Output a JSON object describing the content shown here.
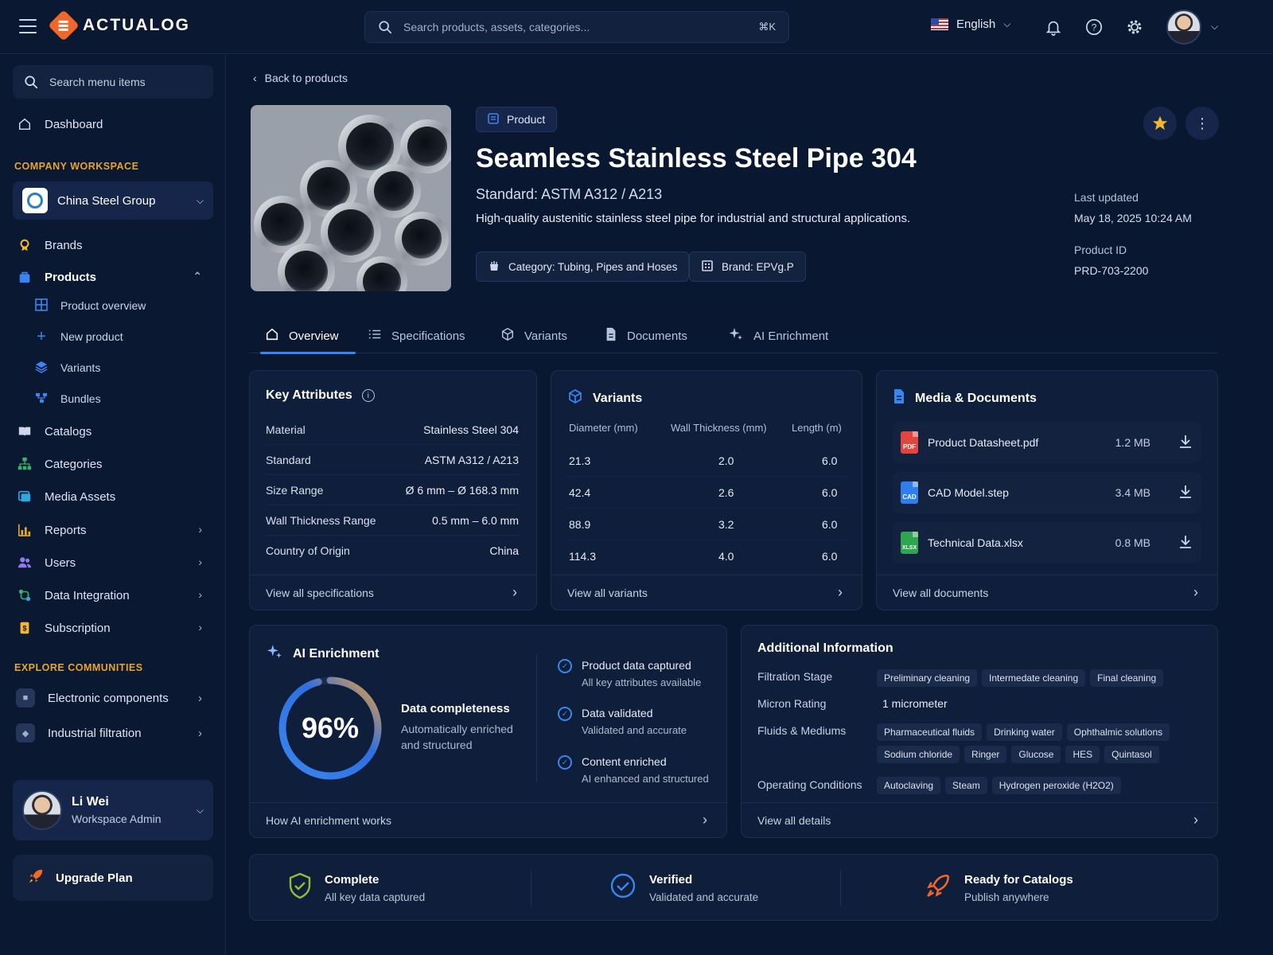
{
  "app": {
    "name": "ACTUALOG"
  },
  "search": {
    "placeholder": "Search products, assets, categories...",
    "shortcut": "⌘K"
  },
  "header": {
    "language": "English"
  },
  "sidebar": {
    "search_placeholder": "Search menu items",
    "dashboard": "Dashboard",
    "workspace_section": "COMPANY WORKSPACE",
    "workspace_name": "China Steel Group",
    "items": {
      "brands": "Brands",
      "products": "Products",
      "product_overview": "Product overview",
      "new_product": "New product",
      "variants": "Variants",
      "bundles": "Bundles",
      "catalogs": "Catalogs",
      "categories": "Categories",
      "media_assets": "Media Assets",
      "reports": "Reports",
      "users": "Users",
      "data_integration": "Data Integration",
      "subscription": "Subscription"
    },
    "communities_section": "EXPLORE COMMUNITIES",
    "communities": [
      "Electronic components",
      "Industrial filtration"
    ],
    "user": {
      "name": "Li Wei",
      "role": "Workspace Admin"
    },
    "upgrade": "Upgrade Plan"
  },
  "product": {
    "back": "Back to products",
    "type": "Product",
    "title": "Seamless Stainless Steel Pipe 304",
    "standard": "Standard: ASTM A312 / A213",
    "description": "High-quality austenitic stainless steel pipe for industrial and structural applications.",
    "category": "Category: Tubing, Pipes and Hoses",
    "brand": "Brand: EPVg.P",
    "last_updated_label": "Last updated",
    "last_updated": "May 18, 2025 10:24 AM",
    "id_label": "Product ID",
    "id": "PRD-703-2200"
  },
  "tabs": [
    "Overview",
    "Specifications",
    "Variants",
    "Documents",
    "AI Enrichment"
  ],
  "key_attributes": {
    "title": "Key Attributes",
    "rows": [
      {
        "k": "Material",
        "v": "Stainless Steel 304"
      },
      {
        "k": "Standard",
        "v": "ASTM A312 / A213"
      },
      {
        "k": "Size Range",
        "v": "Ø 6 mm – Ø 168.3 mm"
      },
      {
        "k": "Wall Thickness Range",
        "v": "0.5 mm – 6.0 mm"
      },
      {
        "k": "Country of Origin",
        "v": "China"
      }
    ],
    "footer": "View all specifications"
  },
  "variants": {
    "title": "Variants",
    "headers": [
      "Diameter (mm)",
      "Wall Thickness (mm)",
      "Length (m)"
    ],
    "rows": [
      [
        "21.3",
        "2.0",
        "6.0"
      ],
      [
        "42.4",
        "2.6",
        "6.0"
      ],
      [
        "88.9",
        "3.2",
        "6.0"
      ],
      [
        "114.3",
        "4.0",
        "6.0"
      ]
    ],
    "footer": "View all variants"
  },
  "media": {
    "title": "Media & Documents",
    "docs": [
      {
        "name": "Product Datasheet.pdf",
        "size": "1.2 MB",
        "badge": "PDF",
        "color": "#e0463f"
      },
      {
        "name": "CAD Model.step",
        "size": "3.4 MB",
        "badge": "CAD",
        "color": "#2f7ef0"
      },
      {
        "name": "Technical Data.xlsx",
        "size": "0.8 MB",
        "badge": "XLSX",
        "color": "#2ea64f"
      }
    ],
    "footer": "View all documents"
  },
  "ai": {
    "title": "AI Enrichment",
    "percent": "96%",
    "completeness": 0.96,
    "label": "Data completeness",
    "sub1": "Automatically enriched",
    "sub2": "and structured",
    "checks": [
      {
        "title": "Product data captured",
        "sub": "All key attributes available"
      },
      {
        "title": "Data validated",
        "sub": "Validated and accurate"
      },
      {
        "title": "Content enriched",
        "sub": "AI enhanced and structured"
      }
    ],
    "footer": "How AI enrichment works"
  },
  "additional": {
    "title": "Additional Information",
    "filtration_label": "Filtration Stage",
    "filtration": [
      "Preliminary cleaning",
      "Intermedate cleaning",
      "Final cleaning"
    ],
    "micron_label": "Micron Rating",
    "micron": "1 micrometer",
    "fluids_label": "Fluids & Mediums",
    "fluids1": [
      "Pharmaceutical fluids",
      "Drinking water",
      "Ophthalmic solutions"
    ],
    "fluids2": [
      "Sodium chloride",
      "Ringer",
      "Glucose",
      "HES",
      "Quintasol"
    ],
    "conditions_label": "Operating Conditions",
    "conditions": [
      "Autoclaving",
      "Steam",
      "Hydrogen peroxide (H2O2)"
    ],
    "footer": "View all details"
  },
  "status": [
    {
      "title": "Complete",
      "sub": "All key data captured"
    },
    {
      "title": "Verified",
      "sub": "Validated and accurate"
    },
    {
      "title": "Ready for Catalogs",
      "sub": "Publish anywhere"
    }
  ],
  "colors": {
    "accent": "#3a86f0",
    "brand": "#f0672a",
    "section": "#e6a52b",
    "background": "#0a1730"
  }
}
